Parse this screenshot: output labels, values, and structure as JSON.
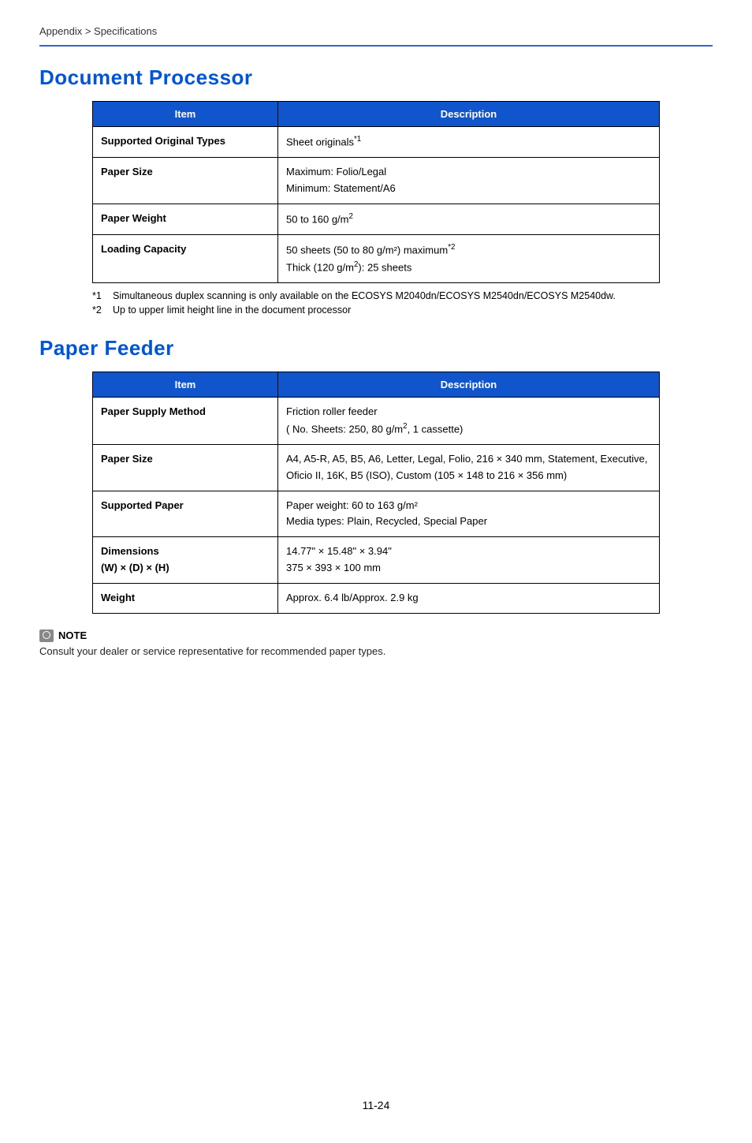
{
  "breadcrumb": "Appendix > Specifications",
  "sections": [
    {
      "heading": "Document Processor",
      "table": {
        "headers": {
          "item": "Item",
          "desc": "Description"
        },
        "rows": [
          {
            "label": "Supported Original Types",
            "value_html": "Sheet originals<sup>*1</sup>"
          },
          {
            "label": "Paper Size",
            "value_html": "Maximum: Folio/Legal<br>Minimum: Statement/A6"
          },
          {
            "label": "Paper Weight",
            "value_html": "50 to 160 g/m<sup>2</sup>"
          },
          {
            "label": "Loading Capacity",
            "value_html": "50 sheets (50 to 80 g/m²) maximum<sup>*2</sup><br>Thick (120 g/m<sup>2</sup>): 25 sheets"
          }
        ]
      },
      "footnotes": [
        {
          "marker": "*1",
          "text": "Simultaneous duplex scanning is only available on the ECOSYS M2040dn/ECOSYS M2540dn/ECOSYS M2540dw."
        },
        {
          "marker": "*2",
          "text": "Up to upper limit height line in the document processor"
        }
      ]
    },
    {
      "heading": "Paper Feeder",
      "table": {
        "headers": {
          "item": "Item",
          "desc": "Description"
        },
        "rows": [
          {
            "label": "Paper Supply Method",
            "value_html": "Friction roller feeder<br>( No. Sheets: 250, 80 g/m<sup>2</sup>, 1 cassette)"
          },
          {
            "label": "Paper Size",
            "value_html": "A4, A5-R, A5, B5, A6, Letter, Legal, Folio, 216 × 340 mm, Statement, Executive, Oficio II, 16K, B5 (ISO), Custom (105 × 148 to 216 × 356 mm)"
          },
          {
            "label": "Supported Paper",
            "value_html": "Paper weight: 60 to 163 g/m²<br>Media types: Plain, Recycled, Special Paper"
          },
          {
            "label_html": "Dimensions<br>(W) × (D) × (H)",
            "value_html": "14.77\" × 15.48\" × 3.94\"<br>375 × 393 × 100 mm"
          },
          {
            "label": "Weight",
            "value_html": "Approx. 6.4 lb/Approx. 2.9 kg"
          }
        ]
      }
    }
  ],
  "note": {
    "label": "NOTE",
    "text": "Consult your dealer or service representative for recommended paper types."
  },
  "page_number": "11-24",
  "colors": {
    "heading": "#0055d4",
    "table_header_bg": "#1155cc",
    "table_header_fg": "#ffffff",
    "border_top": "#3366cc"
  }
}
